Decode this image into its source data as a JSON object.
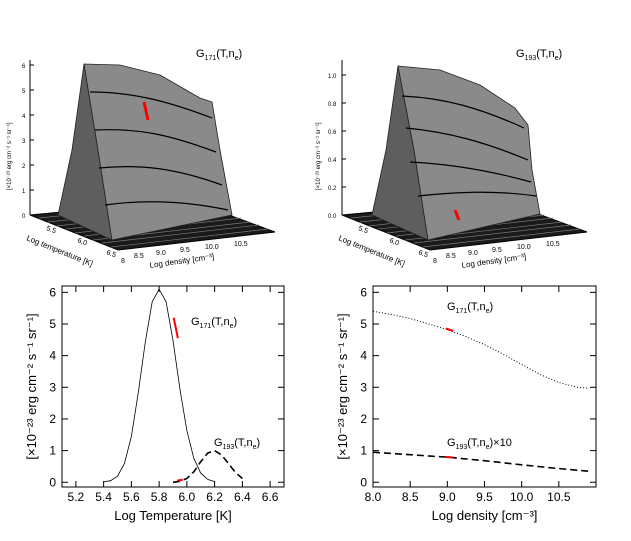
{
  "chart_data": [
    {
      "type": "surface",
      "panel": "top-left",
      "title_main": "G",
      "title_sub": "171",
      "title_arg_a": "(T,n",
      "title_arg_sub": "e",
      "title_arg_b": ")",
      "zlabel": "[×10⁻²³ erg cm⁻² s⁻¹ sr⁻¹]",
      "xlabel": "Log temperature [K]",
      "ylabel": "Log density [cm⁻³]",
      "zticks": [
        "0",
        "1",
        "2",
        "3",
        "4",
        "5",
        "6"
      ],
      "xticks": [
        "5.5",
        "6.0",
        "6.5"
      ],
      "yticks": [
        "8",
        "8.5",
        "9.0",
        "9.5",
        "10.0",
        "10.5"
      ],
      "zrange": [
        0,
        6.3
      ],
      "peak_logT": 5.8,
      "highlight_color": "#ff0000",
      "surface_color": "#8a8a8a"
    },
    {
      "type": "surface",
      "panel": "top-right",
      "title_main": "G",
      "title_sub": "193",
      "title_arg_a": "(T,n",
      "title_arg_sub": "e",
      "title_arg_b": ")",
      "zlabel": "[×10⁻²³ erg cm⁻² s⁻¹ sr⁻¹]",
      "xlabel": "Log temperature [K]",
      "ylabel": "Log density [cm⁻³]",
      "zticks": [
        "0.0",
        "0.2",
        "0.4",
        "0.6",
        "0.8",
        "1.0"
      ],
      "xticks": [
        "5.5",
        "6.0",
        "6.5"
      ],
      "yticks": [
        "8",
        "8.5",
        "9.0",
        "9.5",
        "10.0",
        "10.5"
      ],
      "zrange": [
        0,
        1.1
      ],
      "peak_logT": 6.2,
      "highlight_color": "#ff0000",
      "surface_color": "#8a8a8a"
    },
    {
      "type": "line",
      "panel": "bottom-left",
      "xlabel": "Log Temperature [K]",
      "ylabel": "[×10⁻²³ erg cm⁻² s⁻¹ sr⁻¹]",
      "xlim": [
        5.1,
        6.7
      ],
      "ylim": [
        -0.15,
        6.2
      ],
      "xticks": [
        5.2,
        5.4,
        5.6,
        5.8,
        6.0,
        6.2,
        6.4,
        6.6
      ],
      "yticks": [
        0,
        1,
        2,
        3,
        4,
        5,
        6
      ],
      "series": [
        {
          "label_main": "G",
          "label_sub": "171",
          "label_arg": "(T,n",
          "label_arg_sub": "e",
          "label_end": ")",
          "style": "solid",
          "x": [
            5.4,
            5.45,
            5.5,
            5.55,
            5.6,
            5.65,
            5.7,
            5.75,
            5.8,
            5.85,
            5.9,
            5.95,
            6.0,
            6.05,
            6.1,
            6.15,
            6.2
          ],
          "y": [
            0.01,
            0.05,
            0.19,
            0.59,
            1.45,
            2.84,
            4.43,
            5.7,
            6.1,
            5.7,
            4.48,
            2.95,
            1.63,
            0.76,
            0.29,
            0.09,
            0.02
          ],
          "highlight": {
            "x": [
              5.905,
              5.935
            ],
            "y": [
              5.2,
              4.55
            ]
          }
        },
        {
          "label_main": "G",
          "label_sub": "193",
          "label_arg": "(T,n",
          "label_arg_sub": "e",
          "label_end": ")",
          "style": "dashed",
          "x": [
            5.9,
            5.95,
            6.0,
            6.05,
            6.1,
            6.15,
            6.2,
            6.25,
            6.3,
            6.35,
            6.4
          ],
          "y": [
            0.0,
            0.03,
            0.12,
            0.33,
            0.65,
            0.92,
            1.0,
            0.86,
            0.59,
            0.31,
            0.12
          ],
          "highlight": {
            "x": [
              5.93,
              5.97
            ],
            "y": [
              0.05,
              0.08
            ]
          }
        }
      ]
    },
    {
      "type": "line",
      "panel": "bottom-right",
      "xlabel": "Log density [cm⁻³]",
      "ylabel": "[×10⁻²³ erg cm⁻² s⁻¹ sr⁻¹]",
      "xlim": [
        8.0,
        11.0
      ],
      "ylim": [
        -0.15,
        6.2
      ],
      "xticks": [
        8.0,
        8.5,
        9.0,
        9.5,
        10.0,
        10.5
      ],
      "yticks": [
        0,
        1,
        2,
        3,
        4,
        5,
        6
      ],
      "series": [
        {
          "label_main": "G",
          "label_sub": "171",
          "label_arg": "(T,n",
          "label_arg_sub": "e",
          "label_end": ")",
          "style": "dotted",
          "x": [
            8.0,
            8.25,
            8.5,
            8.75,
            9.0,
            9.25,
            9.5,
            9.75,
            10.0,
            10.25,
            10.5,
            10.75,
            10.9
          ],
          "y": [
            5.4,
            5.3,
            5.17,
            5.0,
            4.82,
            4.6,
            4.35,
            4.05,
            3.72,
            3.4,
            3.15,
            3.0,
            2.97
          ],
          "highlight": {
            "x": [
              8.98,
              9.08
            ],
            "y": [
              4.86,
              4.78
            ]
          }
        },
        {
          "label_main": "G",
          "label_sub": "193",
          "label_arg": "(T,n",
          "label_arg_sub": "e",
          "label_end": ")×10",
          "style": "dashed",
          "x": [
            8.0,
            8.5,
            9.0,
            9.5,
            10.0,
            10.5,
            10.9
          ],
          "y": [
            0.95,
            0.87,
            0.79,
            0.68,
            0.55,
            0.43,
            0.35
          ],
          "highlight": {
            "x": [
              8.98,
              9.08
            ],
            "y": [
              0.8,
              0.78
            ]
          }
        }
      ]
    }
  ]
}
